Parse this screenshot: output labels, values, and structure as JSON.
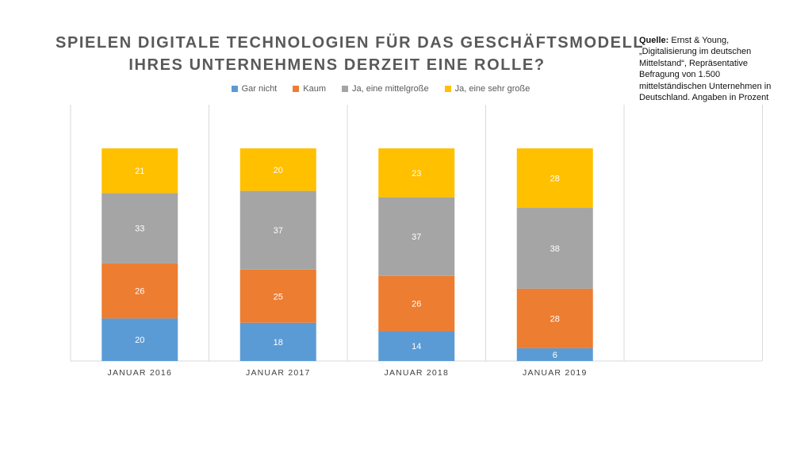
{
  "chart_data": {
    "type": "bar",
    "stacked": true,
    "title": [
      "SPIELEN DIGITALE TECHNOLOGIEN FÜR DAS GESCHÄFTSMODELL",
      "IHRES UNTERNEHMENS DERZEIT EINE ROLLE?"
    ],
    "categories": [
      "JANUAR 2016",
      "JANUAR 2017",
      "JANUAR 2018",
      "JANUAR 2019"
    ],
    "series": [
      {
        "name": "Gar nicht",
        "color": "#5B9BD5",
        "values": [
          20,
          18,
          14,
          6
        ]
      },
      {
        "name": "Kaum",
        "color": "#ED7D31",
        "values": [
          26,
          25,
          26,
          28
        ]
      },
      {
        "name": "Ja, eine mittelgroße",
        "color": "#A5A5A5",
        "values": [
          33,
          37,
          37,
          38
        ]
      },
      {
        "name": "Ja, eine sehr große",
        "color": "#FFC000",
        "values": [
          21,
          20,
          23,
          28
        ]
      }
    ],
    "legend_position": "top",
    "grid": false
  },
  "source": {
    "label": "Quelle:",
    "text": "Ernst & Young, „Digitalisierung im deutschen Mittelstand“, Repräsentative Befragung von 1.500 mittelständischen Unternehmen in Deutschland. Angaben in Prozent"
  }
}
